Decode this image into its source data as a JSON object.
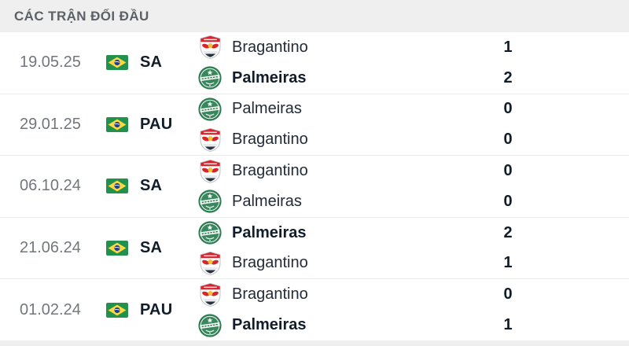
{
  "header": {
    "title": "CÁC TRẬN ĐỐI ĐẦU"
  },
  "colors": {
    "header_bg": "#EFEFEF",
    "header_text": "#5B6167",
    "date_text": "#72777E",
    "strong_text": "#111D2A",
    "team_text": "#222B37",
    "divider": "#E9EAEA",
    "flag_green": "#23914E",
    "flag_yellow": "#FFD83D",
    "flag_blue": "#1D3F94",
    "bragantino_red": "#D6252E",
    "bragantino_yellow": "#F2C230",
    "bragantino_navy": "#27303C",
    "palmeiras_green": "#2E7D52",
    "palmeiras_green_light": "#38875D",
    "palmeiras_white": "#F1F6F2"
  },
  "matches": [
    {
      "date": "19.05.25",
      "competition": "SA",
      "lines": [
        {
          "team": "Bragantino",
          "logo": "bragantino",
          "score": "1",
          "winner": false
        },
        {
          "team": "Palmeiras",
          "logo": "palmeiras",
          "score": "2",
          "winner": true
        }
      ]
    },
    {
      "date": "29.01.25",
      "competition": "PAU",
      "lines": [
        {
          "team": "Palmeiras",
          "logo": "palmeiras",
          "score": "0",
          "winner": false
        },
        {
          "team": "Bragantino",
          "logo": "bragantino",
          "score": "0",
          "winner": false
        }
      ]
    },
    {
      "date": "06.10.24",
      "competition": "SA",
      "lines": [
        {
          "team": "Bragantino",
          "logo": "bragantino",
          "score": "0",
          "winner": false
        },
        {
          "team": "Palmeiras",
          "logo": "palmeiras",
          "score": "0",
          "winner": false
        }
      ]
    },
    {
      "date": "21.06.24",
      "competition": "SA",
      "lines": [
        {
          "team": "Palmeiras",
          "logo": "palmeiras",
          "score": "2",
          "winner": true
        },
        {
          "team": "Bragantino",
          "logo": "bragantino",
          "score": "1",
          "winner": false
        }
      ]
    },
    {
      "date": "01.02.24",
      "competition": "PAU",
      "lines": [
        {
          "team": "Bragantino",
          "logo": "bragantino",
          "score": "0",
          "winner": false
        },
        {
          "team": "Palmeiras",
          "logo": "palmeiras",
          "score": "1",
          "winner": true
        }
      ]
    }
  ]
}
